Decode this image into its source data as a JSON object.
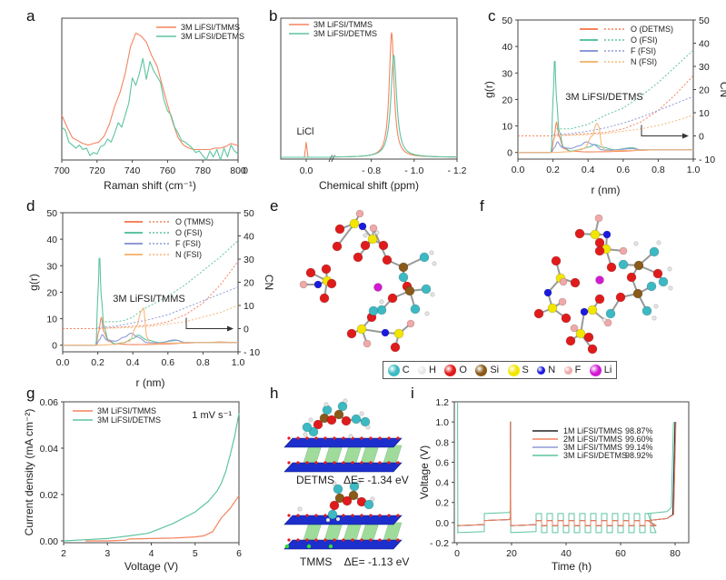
{
  "colors": {
    "tmms": "#f4845f",
    "detms": "#5ec4a0",
    "blue": "#8d9ad8",
    "n_fsi": "#f6b87a",
    "black": "#222222",
    "axis": "#444444"
  },
  "panels": {
    "a": {
      "letter": "a"
    },
    "b": {
      "letter": "b"
    },
    "c": {
      "letter": "c"
    },
    "d": {
      "letter": "d"
    },
    "e": {
      "letter": "e"
    },
    "f": {
      "letter": "f"
    },
    "g": {
      "letter": "g"
    },
    "h": {
      "letter": "h"
    },
    "i": {
      "letter": "i"
    }
  },
  "atom_legend": [
    {
      "symbol": "C",
      "color": "#3cb9c2"
    },
    {
      "symbol": "H",
      "color": "#e6e6e6"
    },
    {
      "symbol": "O",
      "color": "#e01b1b"
    },
    {
      "symbol": "Si",
      "color": "#8a5a1a"
    },
    {
      "symbol": "S",
      "color": "#f2e600"
    },
    {
      "symbol": "N",
      "color": "#1a1adf"
    },
    {
      "symbol": "F",
      "color": "#f0a8a8"
    },
    {
      "symbol": "Li",
      "color": "#d21ad2"
    }
  ],
  "panel_h": {
    "detms_label": "DETMS   ΔE= -1.34 eV",
    "tmms_label": "TMMS    ΔE= -1.13 eV"
  },
  "chart_data": [
    {
      "id": "a",
      "type": "line",
      "title": "",
      "xlabel": "Raman shift (cm⁻¹)",
      "ylabel": "",
      "xlim": [
        700,
        800
      ],
      "ylim": [
        0,
        1
      ],
      "xticks": [
        700,
        720,
        740,
        760,
        780,
        800
      ],
      "legend": "top-right",
      "series": [
        {
          "name": "3M LiFSI/TMMS",
          "color_key": "tmms",
          "x": [
            700,
            703,
            706,
            709,
            712,
            715,
            718,
            721,
            724,
            727,
            730,
            733,
            736,
            739,
            742,
            745,
            748,
            751,
            754,
            757,
            760,
            763,
            766,
            769,
            772,
            775,
            778,
            781,
            784,
            787,
            790,
            793,
            796,
            799,
            800
          ],
          "y": [
            0.3,
            0.22,
            0.15,
            0.13,
            0.11,
            0.1,
            0.11,
            0.12,
            0.16,
            0.24,
            0.36,
            0.45,
            0.58,
            0.76,
            0.85,
            0.83,
            0.79,
            0.7,
            0.63,
            0.5,
            0.37,
            0.25,
            0.15,
            0.1,
            0.08,
            0.07,
            0.07,
            0.07,
            0.07,
            0.08,
            0.08,
            0.09,
            0.11,
            0.1,
            0.1
          ]
        },
        {
          "name": "3M LiFSI/DETMS",
          "color_key": "detms",
          "x": [
            700,
            702,
            704,
            706,
            708,
            710,
            712,
            714,
            716,
            718,
            720,
            722,
            724,
            726,
            728,
            730,
            732,
            734,
            736,
            738,
            740,
            742,
            744,
            746,
            748,
            750,
            752,
            754,
            756,
            758,
            760,
            762,
            764,
            766,
            768,
            770,
            772,
            774,
            776,
            778,
            780,
            782,
            784,
            786,
            788,
            790,
            792,
            794,
            796,
            798,
            800
          ],
          "y": [
            0.22,
            0.2,
            0.12,
            0.1,
            0.08,
            0.1,
            0.07,
            0.08,
            0.03,
            0.05,
            0.04,
            0.09,
            0.1,
            0.14,
            0.12,
            0.18,
            0.25,
            0.22,
            0.3,
            0.38,
            0.55,
            0.5,
            0.58,
            0.68,
            0.54,
            0.66,
            0.6,
            0.56,
            0.52,
            0.4,
            0.33,
            0.3,
            0.22,
            0.18,
            0.13,
            0.12,
            0.1,
            0.08,
            0.05,
            0.06,
            0.03,
            0.0,
            0.06,
            0.02,
            0.07,
            0.0,
            0.08,
            0.02,
            0.1,
            0.06,
            0.04
          ]
        }
      ]
    },
    {
      "id": "b",
      "type": "line",
      "title": "",
      "xlabel": "Chemical shift (ppm)",
      "ylabel": "",
      "xticklabels": [
        "0.0",
        "- 0.8",
        "- 1.0",
        "- 1.2"
      ],
      "axis_break": "//",
      "annotations": [
        {
          "text": "LiCl",
          "x": 0.0
        }
      ],
      "legend": "top-left",
      "series": [
        {
          "name": "3M LiFSI/TMMS",
          "color_key": "tmms",
          "peak_ppm": -0.895,
          "peak_height": 1.0,
          "licl_peak": 0.12
        },
        {
          "name": "3M LiFSI/DETMS",
          "color_key": "detms",
          "peak_ppm": -0.905,
          "peak_height": 0.82,
          "licl_peak": 0.0
        }
      ]
    },
    {
      "id": "c",
      "type": "line",
      "title": "3M LiFSI/DETMS",
      "xlabel": "r (nm)",
      "ylabel": "g(r)",
      "y2label": "CN",
      "xlim": [
        0.0,
        1.0
      ],
      "ylim": [
        -2.5,
        50
      ],
      "y2lim": [
        -10,
        50
      ],
      "xticks": [
        0.0,
        0.2,
        0.4,
        0.6,
        0.8,
        1.0
      ],
      "yticks": [
        0,
        10,
        20,
        30,
        40,
        50
      ],
      "y2ticks": [
        -10,
        0,
        10,
        20,
        30,
        40,
        50
      ],
      "y2ticklabels": [
        "- 10",
        "0",
        "10",
        "20",
        "30",
        "40",
        "50"
      ],
      "legend": "top-right",
      "series": [
        {
          "name": "O (DETMS)",
          "color_key": "tmms",
          "gr_x": [
            0,
            0.19,
            0.205,
            0.22,
            0.235,
            0.26,
            0.3,
            0.4,
            0.5,
            0.6,
            0.7,
            0.8,
            0.9,
            1.0
          ],
          "gr_y": [
            0,
            0,
            5,
            11.5,
            6,
            1.5,
            0.5,
            0.2,
            0.3,
            0.5,
            0.8,
            1.0,
            1.0,
            1.0
          ],
          "cn_x": [
            0,
            0.2,
            0.3,
            0.4,
            0.5,
            0.6,
            0.7,
            0.8,
            0.9,
            1.0
          ],
          "cn_y": [
            0,
            0,
            0.5,
            1,
            1.5,
            3,
            6,
            11,
            18,
            26
          ]
        },
        {
          "name": "O (FSI)",
          "color_key": "detms",
          "gr_x": [
            0,
            0.19,
            0.2,
            0.21,
            0.22,
            0.235,
            0.26,
            0.3,
            0.35,
            0.4,
            0.44,
            0.48,
            0.55,
            0.65,
            0.7,
            0.8,
            1.0
          ],
          "gr_y": [
            0,
            0,
            20,
            36,
            20,
            8,
            2,
            0.5,
            1,
            2,
            3,
            2,
            1,
            1.8,
            1.0,
            1.0,
            1.0
          ],
          "cn_x": [
            0,
            0.2,
            0.22,
            0.3,
            0.35,
            0.4,
            0.45,
            0.5,
            0.6,
            0.7,
            0.8,
            0.9,
            1.0
          ],
          "cn_y": [
            null,
            null,
            3,
            3,
            4,
            5,
            7,
            9,
            12,
            17,
            23,
            30,
            37
          ]
        },
        {
          "name": "F (FSI)",
          "color_key": "blue",
          "gr_x": [
            0,
            0.19,
            0.21,
            0.225,
            0.25,
            0.3,
            0.35,
            0.39,
            0.43,
            0.48,
            0.55,
            0.65,
            0.7,
            1.0
          ],
          "gr_y": [
            0,
            0,
            2,
            4,
            2,
            1.5,
            2.5,
            4,
            3,
            1,
            0.9,
            1.5,
            1.0,
            1.0
          ],
          "cn_x": [
            0,
            0.2,
            0.3,
            0.4,
            0.5,
            0.6,
            0.7,
            0.8,
            0.9,
            1.0
          ],
          "cn_y": [
            null,
            0.5,
            1,
            2,
            3.5,
            5.5,
            8,
            11,
            14,
            17
          ]
        },
        {
          "name": "N (FSI)",
          "color_key": "n_fsi",
          "gr_x": [
            0,
            0.2,
            0.3,
            0.38,
            0.42,
            0.45,
            0.46,
            0.48,
            0.5,
            0.6,
            0.8,
            1.0
          ],
          "gr_y": [
            0,
            0,
            0.3,
            1.5,
            6,
            11,
            10,
            2,
            0.5,
            0.8,
            1.0,
            1.0
          ],
          "cn_x": [
            0,
            0.2,
            0.4,
            0.5,
            0.6,
            0.7,
            0.8,
            0.9,
            1.0
          ],
          "cn_y": [
            null,
            0,
            0.5,
            1,
            2,
            3,
            4.5,
            6.5,
            9
          ]
        }
      ]
    },
    {
      "id": "d",
      "type": "line",
      "title": "3M LiFSI/TMMS",
      "xlabel": "r (nm)",
      "ylabel": "g(r)",
      "y2label": "CN",
      "xlim": [
        0.0,
        1.0
      ],
      "ylim": [
        -2.5,
        50
      ],
      "y2lim": [
        -10,
        50
      ],
      "xticks": [
        0.0,
        0.2,
        0.4,
        0.6,
        0.8,
        1.0
      ],
      "yticks": [
        0,
        10,
        20,
        30,
        40,
        50
      ],
      "y2ticks": [
        -10,
        0,
        10,
        20,
        30,
        40,
        50
      ],
      "y2ticklabels": [
        "- 10",
        "0",
        "10",
        "20",
        "30",
        "40",
        "50"
      ],
      "legend": "top-right",
      "series": [
        {
          "name": "O (TMMS)",
          "color_key": "tmms",
          "gr_x": [
            0,
            0.19,
            0.205,
            0.22,
            0.235,
            0.26,
            0.3,
            0.4,
            0.5,
            0.6,
            0.7,
            0.8,
            0.9,
            1.0
          ],
          "gr_y": [
            0,
            0,
            5,
            10.5,
            5,
            1.5,
            0.5,
            0.2,
            0.3,
            0.5,
            0.8,
            1.0,
            1.2,
            1.0
          ],
          "cn_x": [
            0,
            0.2,
            0.3,
            0.4,
            0.5,
            0.6,
            0.7,
            0.8,
            0.9,
            1.0
          ],
          "cn_y": [
            0,
            0,
            0.5,
            1,
            1.5,
            3,
            6,
            11,
            19,
            29
          ]
        },
        {
          "name": "O (FSI)",
          "color_key": "detms",
          "gr_x": [
            0,
            0.19,
            0.2,
            0.21,
            0.22,
            0.235,
            0.26,
            0.3,
            0.35,
            0.4,
            0.43,
            0.48,
            0.55,
            0.65,
            0.7,
            0.8,
            1.0
          ],
          "gr_y": [
            0,
            0,
            18,
            34.5,
            18,
            7,
            2,
            0.5,
            1,
            2.5,
            3.8,
            2,
            1,
            1.8,
            1.0,
            1.0,
            1.0
          ],
          "cn_x": [
            0,
            0.22,
            0.3,
            0.35,
            0.4,
            0.45,
            0.5,
            0.6,
            0.7,
            0.8,
            0.9,
            1.0
          ],
          "cn_y": [
            null,
            3,
            3,
            3.5,
            5,
            8,
            10,
            14,
            19,
            25,
            31,
            38
          ]
        },
        {
          "name": "F (FSI)",
          "color_key": "blue",
          "gr_x": [
            0,
            0.19,
            0.21,
            0.225,
            0.25,
            0.3,
            0.35,
            0.39,
            0.43,
            0.48,
            0.55,
            0.64,
            0.7,
            1.0
          ],
          "gr_y": [
            0,
            0,
            2,
            4,
            2,
            1.5,
            3,
            4.5,
            3,
            1,
            0.9,
            2.0,
            1.0,
            1.0
          ],
          "cn_x": [
            0,
            0.2,
            0.3,
            0.4,
            0.5,
            0.6,
            0.7,
            0.8,
            0.9,
            1.0
          ],
          "cn_y": [
            null,
            0.5,
            1,
            2.5,
            4,
            6,
            9,
            12,
            15,
            18
          ]
        },
        {
          "name": "N (FSI)",
          "color_key": "n_fsi",
          "gr_x": [
            0,
            0.2,
            0.3,
            0.38,
            0.42,
            0.45,
            0.46,
            0.48,
            0.5,
            0.6,
            0.8,
            1.0
          ],
          "gr_y": [
            0,
            0,
            0.3,
            1.5,
            7,
            13,
            14,
            3,
            0.5,
            0.8,
            1.0,
            1.0
          ],
          "cn_x": [
            0,
            0.2,
            0.4,
            0.5,
            0.6,
            0.7,
            0.8,
            0.9,
            1.0
          ],
          "cn_y": [
            null,
            0,
            0.5,
            1,
            2,
            3,
            5,
            7,
            10
          ]
        }
      ]
    },
    {
      "id": "g",
      "type": "line",
      "title": "",
      "xlabel": "Voltage (V)",
      "ylabel": "Current density (mA cm⁻²)",
      "xlim": [
        2,
        6
      ],
      "ylim": [
        0,
        0.06
      ],
      "xticks": [
        2,
        3,
        4,
        5,
        6
      ],
      "yticks": [
        0.0,
        0.02,
        0.04,
        0.06
      ],
      "yticklabels": [
        "0.00",
        "0.02",
        "0.04",
        "0.06"
      ],
      "annotations": [
        {
          "text": "1 mV s⁻¹",
          "position": "top-right"
        }
      ],
      "legend": "top-left",
      "series": [
        {
          "name": "3M LiFSI/TMMS",
          "color_key": "tmms",
          "x": [
            2.5,
            3.0,
            3.4,
            3.5,
            4.0,
            4.5,
            5.0,
            5.2,
            5.4,
            5.5,
            5.6,
            5.8,
            6.0
          ],
          "y": [
            0.0,
            0.0,
            0.0003,
            0.0008,
            0.001,
            0.0012,
            0.0017,
            0.0022,
            0.004,
            0.007,
            0.01,
            0.014,
            0.0195
          ]
        },
        {
          "name": "3M LiFSI/DETMS",
          "color_key": "detms",
          "x": [
            2.0,
            2.5,
            3.0,
            3.5,
            3.9,
            4.0,
            4.5,
            5.0,
            5.3,
            5.5,
            5.6,
            5.7,
            5.8,
            5.9,
            6.0
          ],
          "y": [
            0.0,
            0.0005,
            0.001,
            0.0022,
            0.0032,
            0.0038,
            0.0075,
            0.0125,
            0.017,
            0.0215,
            0.025,
            0.03,
            0.037,
            0.045,
            0.055
          ]
        }
      ]
    },
    {
      "id": "i",
      "type": "line",
      "title": "",
      "xlabel": "Time (h)",
      "ylabel": "Voltage (V)",
      "xlim": [
        -1,
        85
      ],
      "ylim": [
        -0.2,
        1.2
      ],
      "xticks": [
        0,
        20,
        40,
        60,
        80
      ],
      "yticks": [
        -0.2,
        0.0,
        0.2,
        0.4,
        0.6,
        0.8,
        1.0,
        1.2
      ],
      "yticklabels": [
        "- 0.2",
        "0.0",
        "0.2",
        "0.4",
        "0.6",
        "0.8",
        "1.0",
        "1.2"
      ],
      "legend": "top-center",
      "series": [
        {
          "name": "1M LiFSI/TMMS",
          "efficiency": "98.87%",
          "color_key": "black"
        },
        {
          "name": "2M LiFSI/TMMS",
          "efficiency": "99.60%",
          "color_key": "tmms"
        },
        {
          "name": "3M LiFSI/TMMS",
          "efficiency": "99.14%",
          "color_key": "blue"
        },
        {
          "name": "3M LiFSI/DETMS",
          "efficiency": "98.92%",
          "color_key": "detms"
        }
      ],
      "protocol": {
        "initial_plating_h": [
          0,
          10
        ],
        "initial_stripping_h": [
          10,
          19.5
        ],
        "cycling_h": [
          29,
          70
        ],
        "cycle_period_h": 4,
        "final_plating_h": [
          19.5,
          29
        ],
        "final_stripping_h": [
          70,
          80
        ],
        "tmms_plating_v": -0.03,
        "tmms_stripping_v": 0.02,
        "detms_plating_v": -0.1,
        "detms_stripping_v": 0.09,
        "cutoff_v": 1.0
      }
    }
  ]
}
